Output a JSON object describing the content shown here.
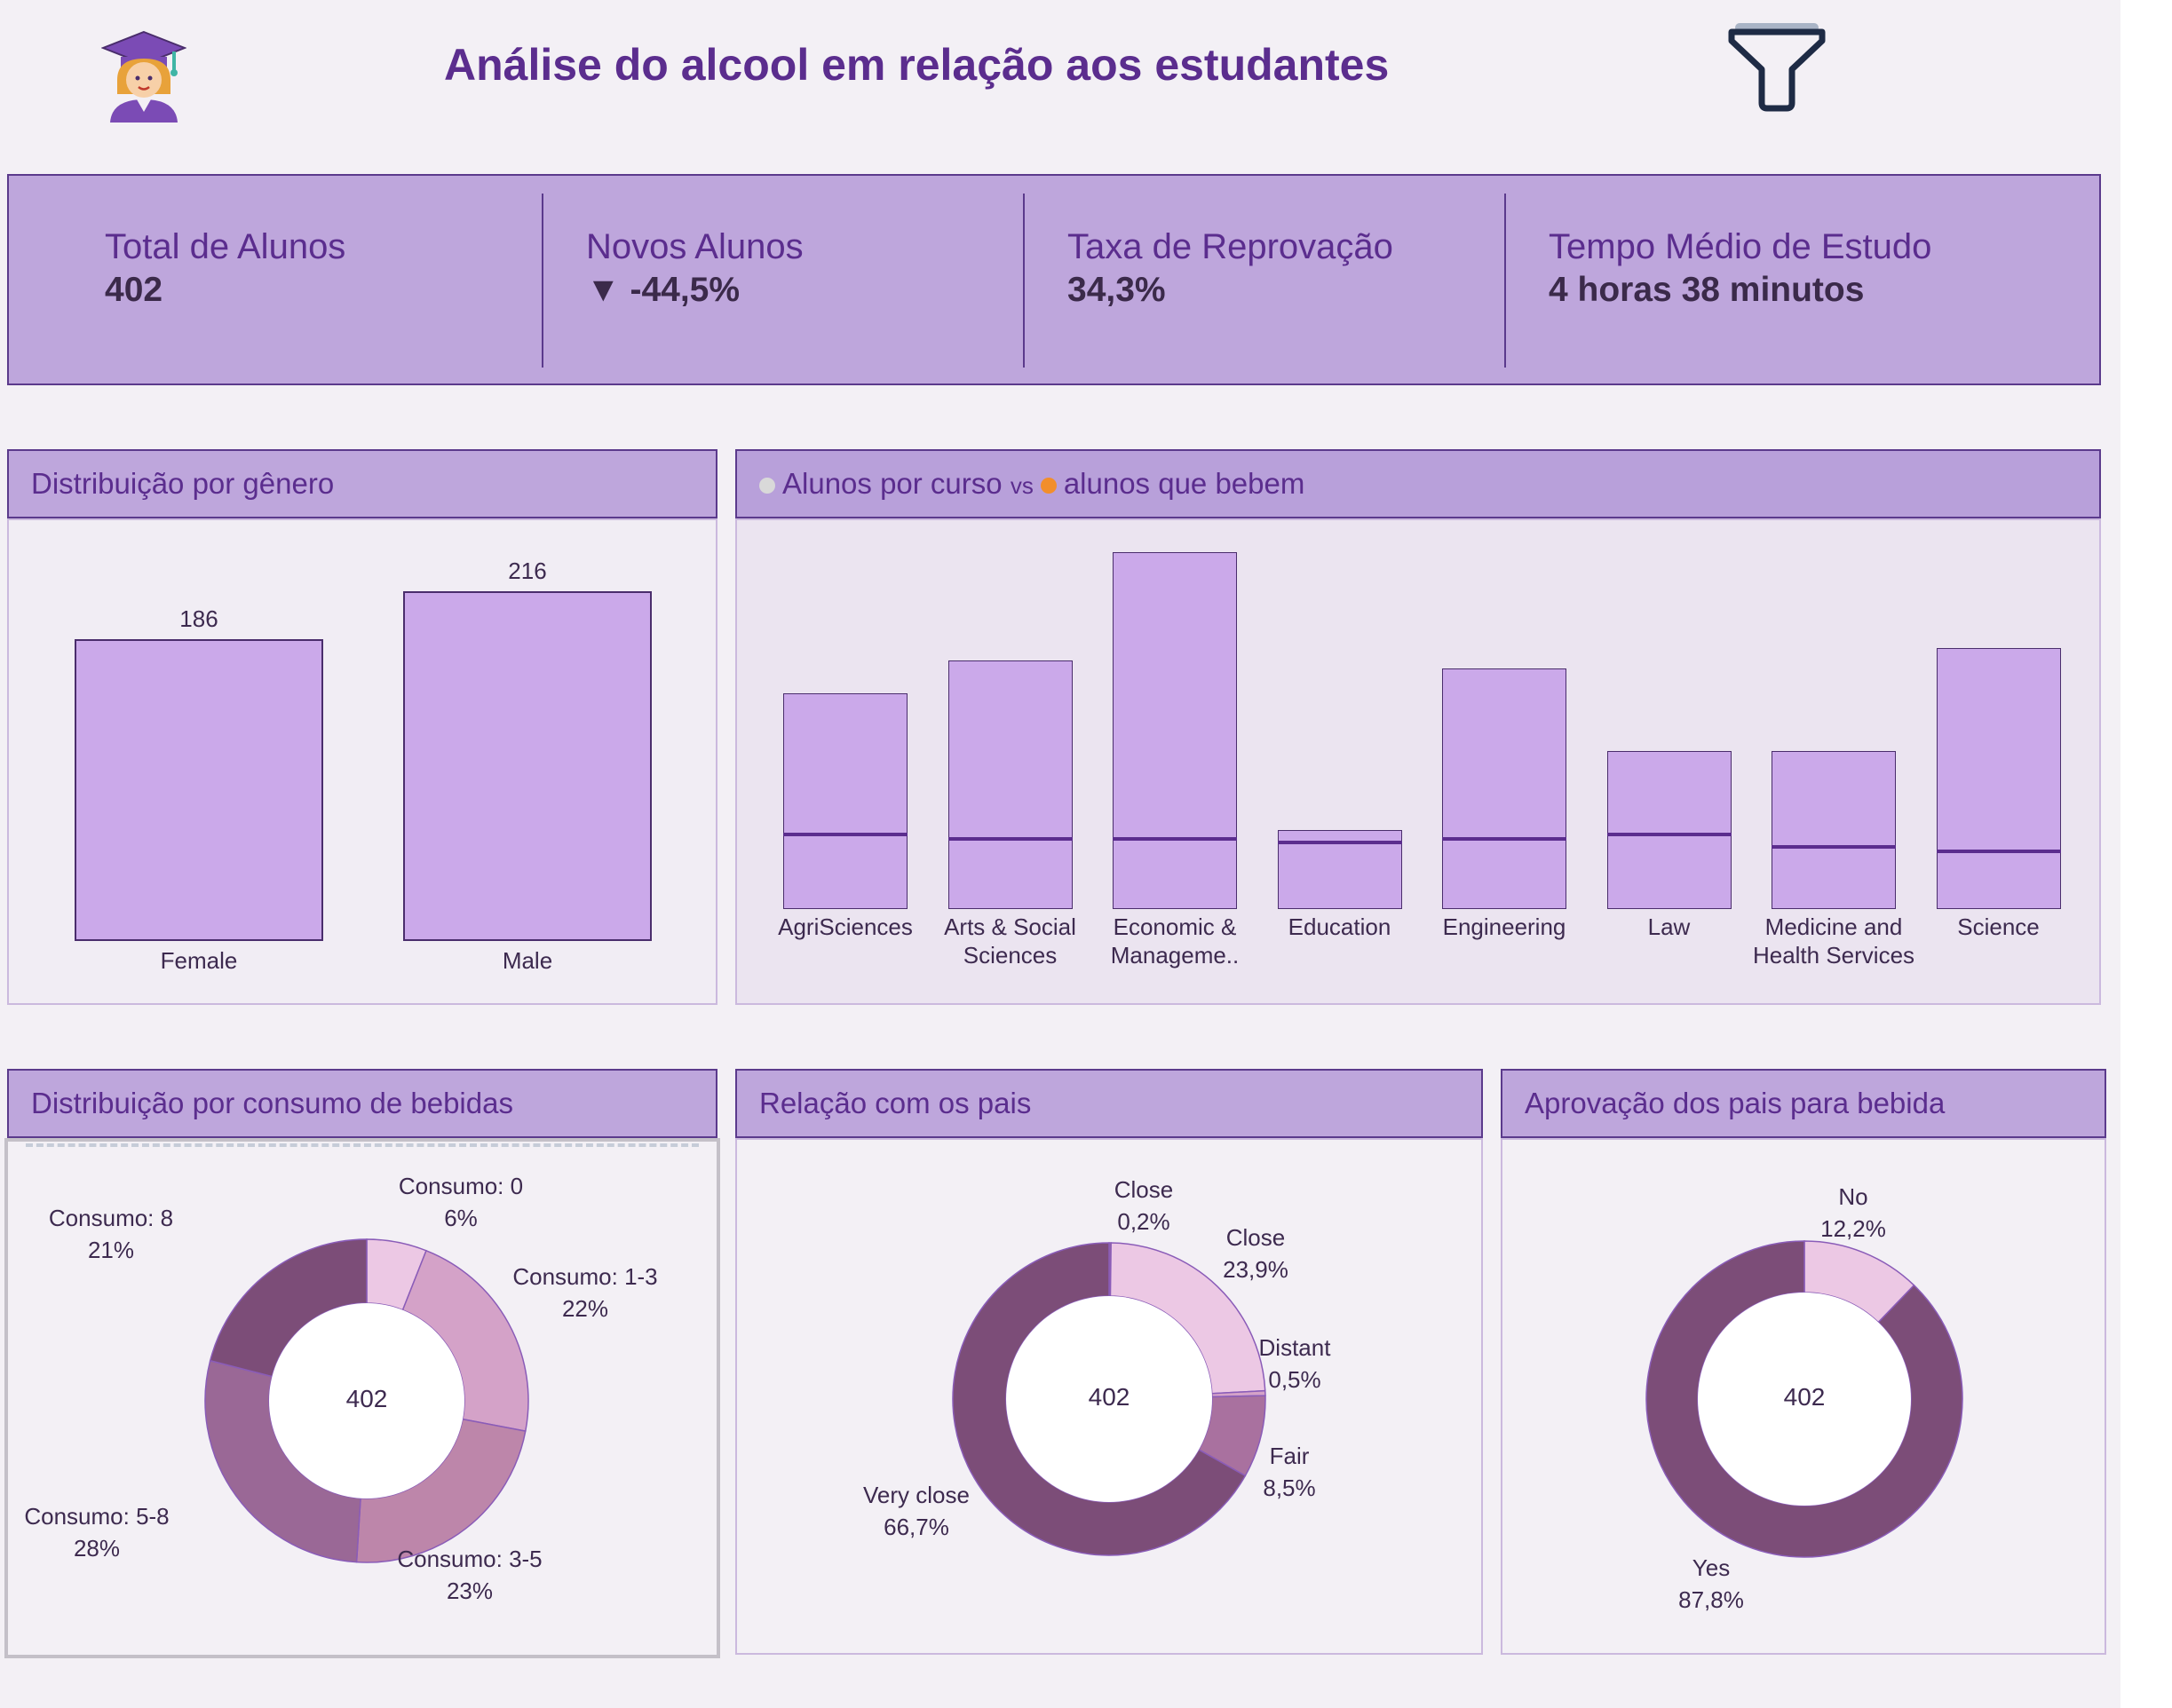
{
  "header": {
    "title": "Análise do alcool em relação aos estudantes",
    "logo_icon": "graduate-student-icon",
    "filter_icon": "filter-funnel-icon"
  },
  "kpis": [
    {
      "label": "Total de Alunos",
      "value": "402"
    },
    {
      "label": "Novos Alunos",
      "value": "-44,5%",
      "indicator": "▼"
    },
    {
      "label": "Taxa de Reprovação",
      "value": "34,3%"
    },
    {
      "label": "Tempo Médio de Estudo",
      "value": "4 horas 38 minutos"
    }
  ],
  "gender_panel": {
    "title": "Distribuição por gênero"
  },
  "course_panel": {
    "title_part1": "Alunos por curso",
    "vs": "vs",
    "title_part2": "alunos que bebem"
  },
  "drink_panel": {
    "title": "Distribuição por consumo de bebidas",
    "center": "402"
  },
  "parents_panel": {
    "title": "Relação com os pais",
    "center": "402"
  },
  "approval_panel": {
    "title": "Aprovação dos pais para bebida",
    "center": "402"
  },
  "colors": {
    "bar_fill": "#cba9ea",
    "bar_border": "#4a2d6c",
    "accent": "#5b2d8e"
  },
  "chart_data": [
    {
      "type": "bar",
      "title": "Distribuição por gênero",
      "categories": [
        "Female",
        "Male"
      ],
      "values": [
        186,
        216
      ],
      "ylim": [
        0,
        230
      ]
    },
    {
      "type": "bar",
      "title": "Alunos por curso vs alunos que bebem",
      "categories": [
        "AgriSciences",
        "Arts & Social Sciences",
        "Economic & Manageme..",
        "Education",
        "Engineering",
        "Law",
        "Medicine and Health Services",
        "Science"
      ],
      "category_lines": [
        [
          "AgriSciences"
        ],
        [
          "Arts & Social",
          "Sciences"
        ],
        [
          "Economic &",
          "Manageme.."
        ],
        [
          "Education"
        ],
        [
          "Engineering"
        ],
        [
          "Law"
        ],
        [
          "Medicine and",
          "Health Services"
        ],
        [
          "Science"
        ]
      ],
      "series": [
        {
          "name": "Alunos por curso",
          "values": [
            52,
            60,
            86,
            19,
            58,
            38,
            38,
            63
          ]
        },
        {
          "name": "alunos que bebem",
          "values": [
            18,
            17,
            17,
            16,
            17,
            18,
            15,
            14
          ]
        }
      ],
      "ylim": [
        0,
        86
      ]
    },
    {
      "type": "pie",
      "title": "Distribuição por consumo de bebidas",
      "labels": [
        "Consumo: 0",
        "Consumo: 1-3",
        "Consumo: 3-5",
        "Consumo: 5-8",
        "Consumo: 8"
      ],
      "values": [
        6,
        22,
        23,
        28,
        21
      ],
      "value_labels": [
        "6%",
        "22%",
        "23%",
        "28%",
        "21%"
      ],
      "colors": [
        "#ecc8e4",
        "#d4a2c8",
        "#bd86aa",
        "#9a6896",
        "#7c4d78"
      ]
    },
    {
      "type": "pie",
      "title": "Relação com os pais",
      "labels": [
        "Close",
        "Close",
        "Distant",
        "Fair",
        "Very close"
      ],
      "values": [
        0.2,
        23.9,
        0.5,
        8.5,
        66.7
      ],
      "value_labels": [
        "0,2%",
        "23,9%",
        "0,5%",
        "8,5%",
        "66,7%"
      ],
      "colors": [
        "#9a6896",
        "#ecc8e4",
        "#d4a2c8",
        "#a9719f",
        "#7c4d78"
      ]
    },
    {
      "type": "pie",
      "title": "Aprovação dos pais para bebida",
      "labels": [
        "No",
        "Yes"
      ],
      "values": [
        12.2,
        87.8
      ],
      "value_labels": [
        "12,2%",
        "87,8%"
      ],
      "colors": [
        "#ecc8e4",
        "#7c4d78"
      ]
    }
  ]
}
